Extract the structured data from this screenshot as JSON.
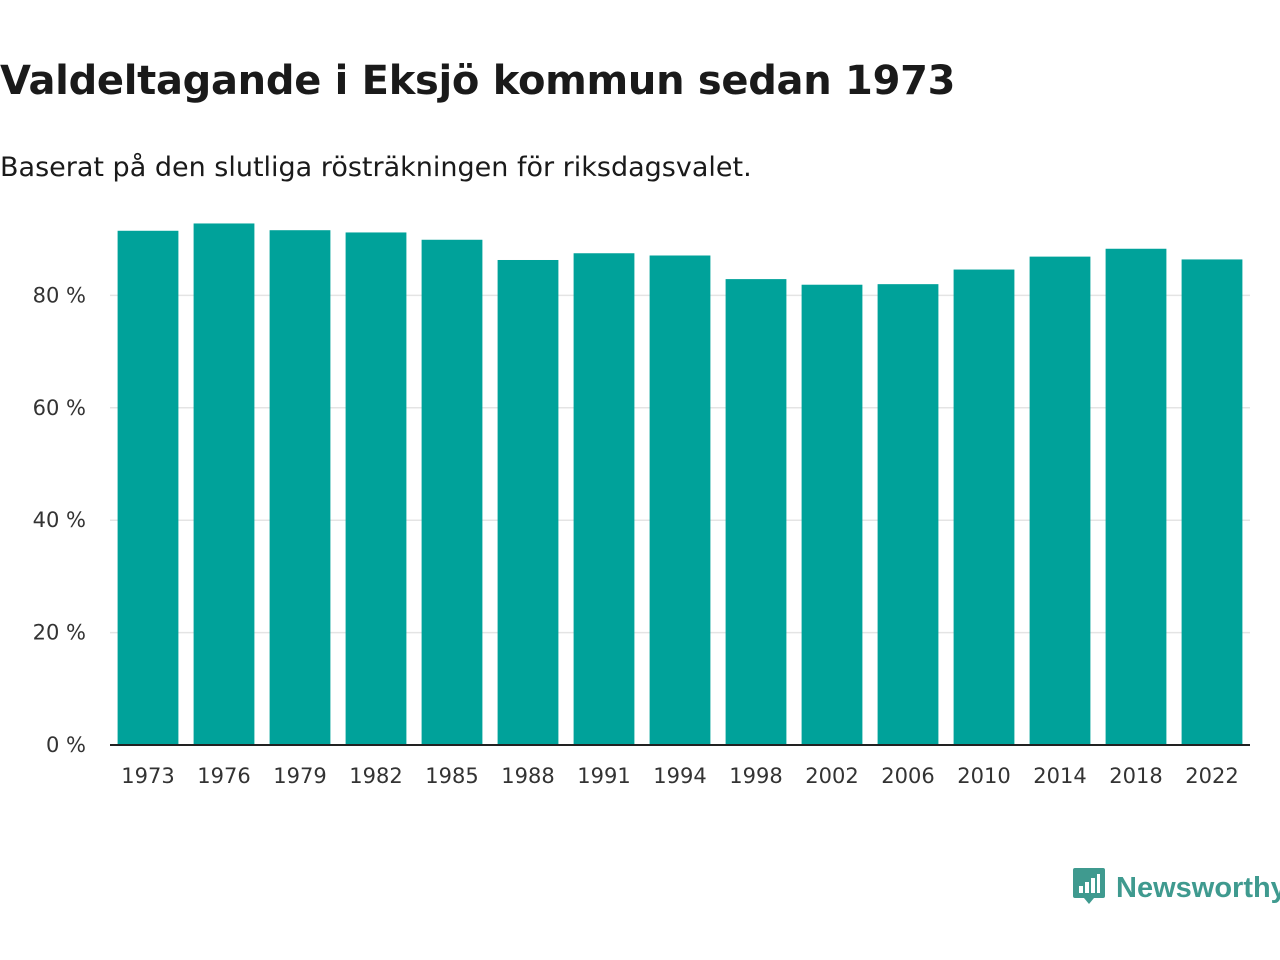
{
  "colors": {
    "bar": "#00A29A",
    "grid": "#e4e4e4",
    "axis": "#222222",
    "brand": "#3f9a8f"
  },
  "brand": {
    "name": "Newsworthy",
    "icon": "bar-chart-speech-icon"
  },
  "chart_data": {
    "type": "bar",
    "title": "Valdeltagande i Eksjö kommun sedan 1973",
    "subtitle": "Baserat på den slutliga rösträkningen för riksdagsvalet.",
    "xlabel": "",
    "ylabel": "",
    "categories": [
      "1973",
      "1976",
      "1979",
      "1982",
      "1985",
      "1988",
      "1991",
      "1994",
      "1998",
      "2002",
      "2006",
      "2010",
      "2014",
      "2018",
      "2022"
    ],
    "values": [
      91.5,
      92.8,
      91.6,
      91.2,
      89.9,
      86.3,
      87.5,
      87.1,
      82.9,
      81.9,
      82.0,
      84.6,
      86.9,
      88.3,
      86.4
    ],
    "ylim": [
      0,
      100
    ],
    "yticks": [
      0,
      20,
      40,
      60,
      80
    ],
    "ytick_labels": [
      "0 %",
      "20 %",
      "40 %",
      "60 %",
      "80 %"
    ],
    "grid": true
  }
}
